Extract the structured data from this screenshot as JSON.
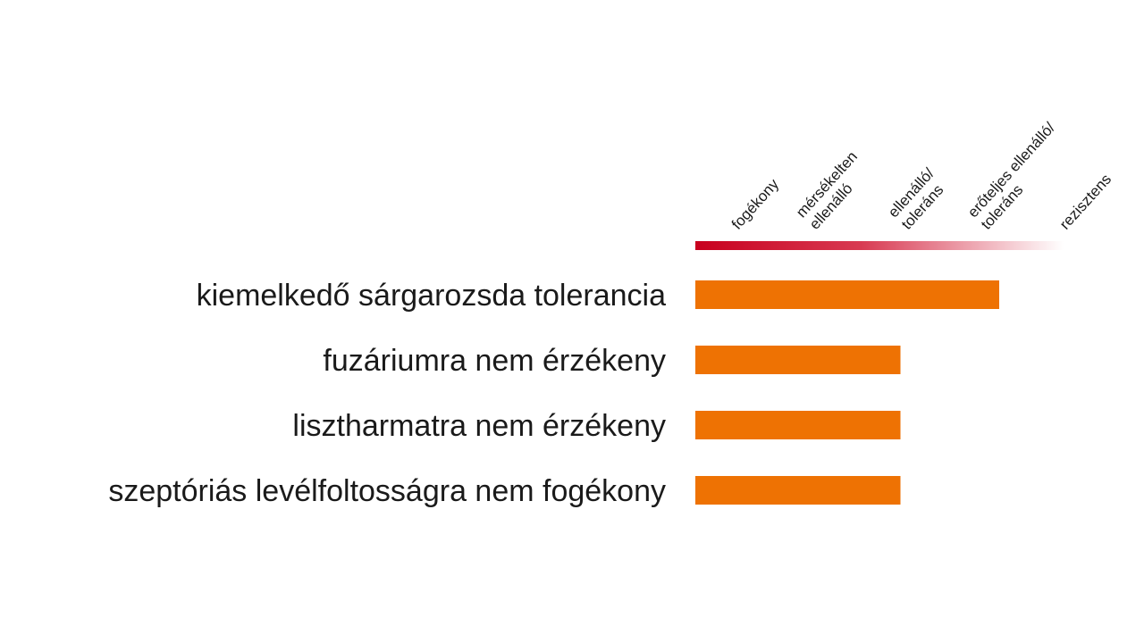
{
  "colors": {
    "bar": "#ee7203",
    "scale_start": "#c8001e",
    "scale_end": "#ffffff",
    "text": "#1a1a1a"
  },
  "chart_data": {
    "type": "bar",
    "orientation": "horizontal",
    "title": "",
    "xlabel": "",
    "ylabel": "",
    "scale_levels": [
      [
        "fogékony"
      ],
      [
        "mérsékelten",
        "ellenálló"
      ],
      [
        "ellenálló/",
        "toleráns"
      ],
      [
        "erőteljes ellenálló/",
        "toleráns"
      ],
      [
        "rezisztens"
      ]
    ],
    "xlim": [
      0,
      5
    ],
    "categories": [
      "kiemelkedő sárgarozsda tolerancia",
      "fuzáriumra nem érzékeny",
      "lisztharmatra nem érzékeny",
      "szeptóriás levélfoltosságra nem fogékony"
    ],
    "values": [
      4.0,
      2.7,
      2.7,
      2.7
    ],
    "grid": false,
    "legend": "none"
  }
}
